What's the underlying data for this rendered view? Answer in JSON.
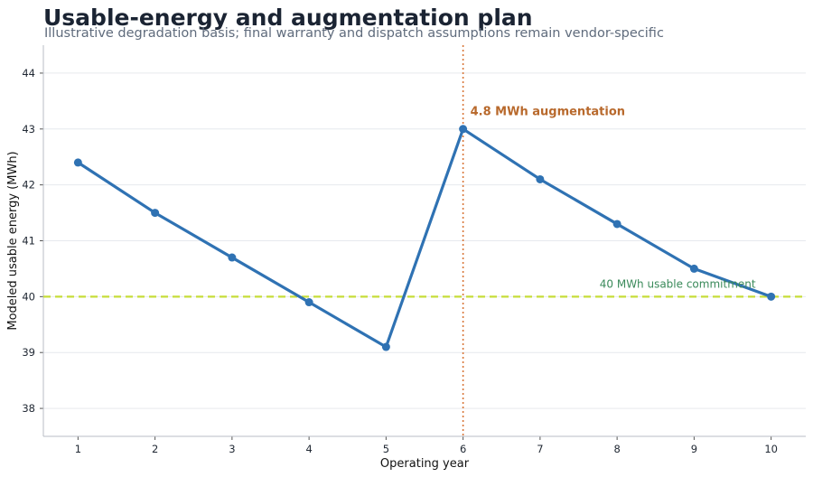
{
  "header": {
    "title": "Usable-energy and augmentation plan",
    "subtitle": "Illustrative degradation basis; final warranty and dispatch assumptions remain vendor-specific"
  },
  "chart_data": {
    "type": "line",
    "title": "Usable-energy and augmentation plan",
    "subtitle": "Illustrative degradation basis; final warranty and dispatch assumptions remain vendor-specific",
    "xlabel": "Operating year",
    "ylabel": "Modeled usable energy (MWh)",
    "xlim": [
      0.55,
      10.45
    ],
    "ylim": [
      37.5,
      44.5
    ],
    "xticks": [
      1,
      2,
      3,
      4,
      5,
      6,
      7,
      8,
      9,
      10
    ],
    "yticks": [
      38,
      39,
      40,
      41,
      42,
      43,
      44
    ],
    "grid": "horizontal",
    "series": [
      {
        "x": [
          1,
          2,
          3,
          4,
          5,
          6,
          7,
          8,
          9,
          10
        ],
        "values": [
          42.4,
          41.5,
          40.7,
          39.9,
          39.1,
          43.0,
          42.1,
          41.3,
          40.5,
          40.0
        ],
        "color": "#2f72b3"
      }
    ],
    "reference_lines": [
      {
        "orientation": "horizontal",
        "value": 40,
        "label": "40 MWh usable commitment",
        "color": "#c7dd3a",
        "label_color": "#3a8a5a",
        "style": "dashed"
      },
      {
        "orientation": "vertical",
        "value": 6,
        "label": "4.8 MWh augmentation",
        "color": "#d9773a",
        "label_color": "#b8692c",
        "style": "dotted"
      }
    ]
  }
}
